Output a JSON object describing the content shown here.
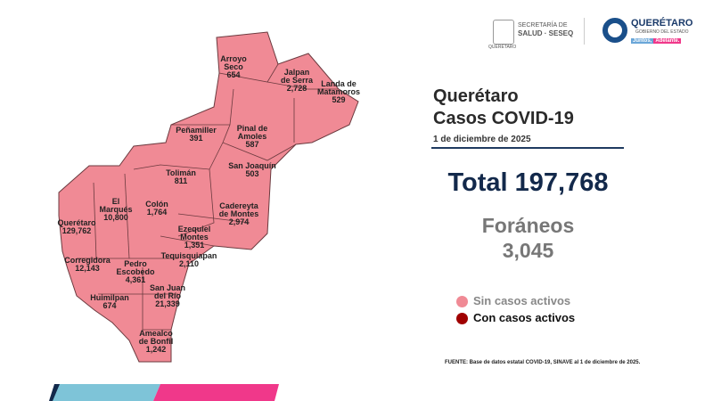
{
  "header": {
    "secretaria_line1": "SECRETARÍA DE",
    "secretaria_line2": "SALUD · SESEQ",
    "seal_caption": "QUERÉTARO",
    "brand_name": "QUERÉTARO",
    "brand_sub": "GOBIERNO DEL ESTADO",
    "slogan_a": "Juntos,",
    "slogan_b": "Adelante."
  },
  "panel": {
    "state": "Querétaro",
    "subtitle": "Casos COVID-19",
    "date": "1 de diciembre de 2025",
    "total_label": "Total 197,768",
    "foraneos_label": "Foráneos",
    "foraneos_value": "3,045"
  },
  "legend": [
    {
      "label": "Sin casos activos",
      "color": "#f08a95"
    },
    {
      "label": "Con casos activos",
      "color": "#a00000"
    }
  ],
  "source": "FUENTE: Base de datos estatal COVID-19, SINAVE  al 1 de diciembre de 2025.",
  "colors": {
    "map_fill": "#f08a95",
    "map_border": "#6b3a3f",
    "rule": "#1f3a60",
    "footer_blue": "#7ec4d8",
    "footer_pink": "#f0388a",
    "total_text": "#13294b"
  },
  "municipios": [
    {
      "name": "Arroyo\nSeco",
      "cases": "654"
    },
    {
      "name": "Jalpan\nde Serra",
      "cases": "2,728"
    },
    {
      "name": "Landa de\nMatamoros",
      "cases": "529"
    },
    {
      "name": "Pinal de\nAmoles",
      "cases": "587"
    },
    {
      "name": "Peñamiller",
      "cases": "391"
    },
    {
      "name": "San Joaquín",
      "cases": "503"
    },
    {
      "name": "Tolimán",
      "cases": "811"
    },
    {
      "name": "El\nMarqués",
      "cases": "10,800"
    },
    {
      "name": "Colón",
      "cases": "1,764"
    },
    {
      "name": "Cadereyta\nde Montes",
      "cases": "2,974"
    },
    {
      "name": "Querétaro",
      "cases": "129,762"
    },
    {
      "name": "Ezequiel\nMontes",
      "cases": "1,351"
    },
    {
      "name": "Corregidora",
      "cases": "12,143"
    },
    {
      "name": "Tequisquiapan",
      "cases": "2,110"
    },
    {
      "name": "Pedro\nEscobedo",
      "cases": "4,361"
    },
    {
      "name": "San Juan\ndel Río",
      "cases": "21,339"
    },
    {
      "name": "Huimilpan",
      "cases": "674"
    },
    {
      "name": "Amealco\nde Bonfil",
      "cases": "1,242"
    }
  ]
}
